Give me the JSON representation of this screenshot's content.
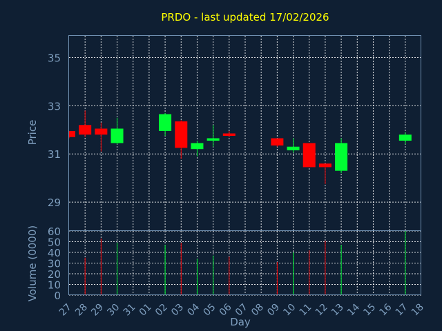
{
  "chart_data": {
    "type": "candlestick",
    "title": "PRDO - last updated 17/02/2026",
    "xlabel": "Day",
    "price_panel": {
      "ylabel": "Price",
      "ylim": [
        27.8,
        35.9
      ],
      "yticks": [
        29,
        31,
        33,
        35
      ]
    },
    "volume_panel": {
      "ylabel": "Volume (0000)",
      "ylim": [
        0,
        60
      ],
      "yticks": [
        0,
        10,
        20,
        30,
        40,
        50,
        60
      ]
    },
    "grid": true,
    "x_tick_labels": [
      "27",
      "28",
      "29",
      "30",
      "31",
      "01",
      "02",
      "03",
      "04",
      "05",
      "06",
      "07",
      "08",
      "09",
      "10",
      "11",
      "12",
      "13",
      "14",
      "15",
      "16",
      "17",
      "18"
    ],
    "colors": {
      "up": "#00ff33",
      "down": "#ff0000"
    },
    "candles": [
      {
        "x": "27",
        "open": 31.95,
        "high": 31.95,
        "low": 31.65,
        "close": 31.7,
        "volume": 0
      },
      {
        "x": "28",
        "open": 32.2,
        "high": 32.8,
        "low": 31.7,
        "close": 31.8,
        "volume": 35
      },
      {
        "x": "29",
        "open": 32.05,
        "high": 32.3,
        "low": 31.1,
        "close": 31.8,
        "volume": 53
      },
      {
        "x": "30",
        "open": 31.45,
        "high": 32.5,
        "low": 31.4,
        "close": 32.05,
        "volume": 49
      },
      {
        "x": "02",
        "open": 31.95,
        "high": 32.7,
        "low": 31.75,
        "close": 32.65,
        "volume": 47
      },
      {
        "x": "03",
        "open": 32.35,
        "high": 32.4,
        "low": 30.8,
        "close": 31.25,
        "volume": 49
      },
      {
        "x": "04",
        "open": 31.2,
        "high": 31.55,
        "low": 30.9,
        "close": 31.45,
        "volume": 34
      },
      {
        "x": "05",
        "open": 31.55,
        "high": 32.2,
        "low": 31.3,
        "close": 31.65,
        "volume": 37
      },
      {
        "x": "06",
        "open": 31.85,
        "high": 31.95,
        "low": 31.7,
        "close": 31.75,
        "volume": 36
      },
      {
        "x": "09",
        "open": 31.65,
        "high": 31.65,
        "low": 31.3,
        "close": 31.35,
        "volume": 31
      },
      {
        "x": "10",
        "open": 31.15,
        "high": 31.65,
        "low": 31.05,
        "close": 31.3,
        "volume": 40
      },
      {
        "x": "11",
        "open": 31.45,
        "high": 31.45,
        "low": 30.45,
        "close": 30.45,
        "volume": 42
      },
      {
        "x": "12",
        "open": 30.6,
        "high": 30.6,
        "low": 29.75,
        "close": 30.45,
        "volume": 51
      },
      {
        "x": "13",
        "open": 30.3,
        "high": 31.65,
        "low": 30.2,
        "close": 31.45,
        "volume": 47
      },
      {
        "x": "17",
        "open": 31.55,
        "high": 31.9,
        "low": 31.4,
        "close": 31.8,
        "volume": 60
      }
    ]
  }
}
